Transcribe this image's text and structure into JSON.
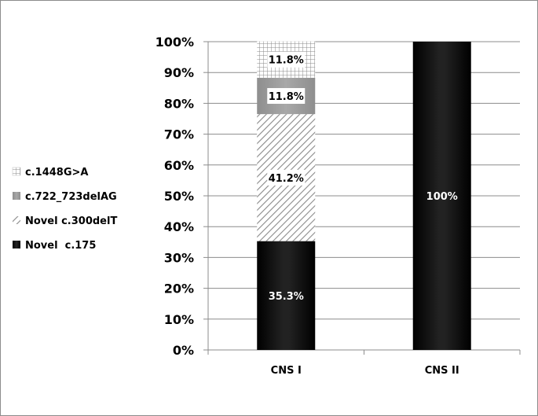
{
  "chart_data": {
    "type": "bar",
    "stacked": true,
    "percent": true,
    "categories": [
      "CNS I",
      "CNS II"
    ],
    "series": [
      {
        "name": "Novel  c.175",
        "values": [
          35.3,
          100
        ],
        "labels": [
          "35.3%",
          "100%"
        ],
        "fill": "black"
      },
      {
        "name": "Novel c.300delT",
        "values": [
          41.2,
          0
        ],
        "labels": [
          "41.2%",
          ""
        ],
        "fill": "diagonal-hatch"
      },
      {
        "name": "c.722_723delAG",
        "values": [
          11.8,
          0
        ],
        "labels": [
          "11.8%",
          ""
        ],
        "fill": "gray"
      },
      {
        "name": "c.1448G>A",
        "values": [
          11.8,
          0
        ],
        "labels": [
          "11.8%",
          ""
        ],
        "fill": "grid-hatch"
      }
    ],
    "y_ticks": [
      "0%",
      "10%",
      "20%",
      "30%",
      "40%",
      "50%",
      "60%",
      "70%",
      "80%",
      "90%",
      "100%"
    ],
    "ylim": [
      0,
      100
    ],
    "grid": true,
    "legend_position": "left",
    "legend_order": [
      "c.1448G>A",
      "c.722_723delAG",
      "Novel c.300delT",
      "Novel  c.175"
    ],
    "colors": {
      "black": "#000000",
      "gray": "#9a9a9a",
      "hatch": "#8a8a8a",
      "grid": "#8c8c8c"
    }
  }
}
